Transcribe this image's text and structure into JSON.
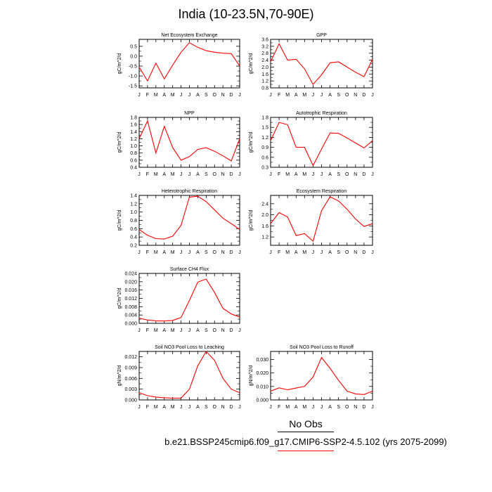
{
  "page": {
    "title": "India (10-23.5N,70-90E)",
    "legend": {
      "obs_label": "No Obs",
      "model_label": "b.e21.BSSP245cmip6.f09_g17.CMIP6-SSP2-4.5.102 (yrs 2075-2099)",
      "model_color": "#ff0000",
      "obs_color": "#000000"
    }
  },
  "chart_data": [
    {
      "type": "line",
      "title": "Net Ecosystem Exchange",
      "ylabel": "gC/m^2/d",
      "categories": [
        "J",
        "F",
        "M",
        "A",
        "M",
        "J",
        "J",
        "A",
        "S",
        "O",
        "N",
        "D",
        "J"
      ],
      "values": [
        -0.55,
        -1.25,
        -0.35,
        -1.15,
        -0.45,
        0.2,
        0.68,
        0.45,
        0.28,
        0.2,
        0.15,
        0.13,
        -0.5
      ],
      "ylim": [
        -1.6,
        0.85
      ],
      "yticks": [
        0.5,
        0.0,
        -0.5,
        -1.0,
        -1.5
      ],
      "ytick_labels": [
        "0.5",
        "0.0",
        "-0.5",
        "-1.0",
        "-1.5"
      ],
      "color": "#ff0000"
    },
    {
      "type": "line",
      "title": "GPP",
      "ylabel": "gC/m^2/d",
      "categories": [
        "J",
        "F",
        "M",
        "A",
        "M",
        "J",
        "J",
        "A",
        "S",
        "O",
        "N",
        "D",
        "J"
      ],
      "values": [
        2.3,
        3.35,
        2.4,
        2.45,
        1.9,
        1.0,
        1.55,
        2.25,
        2.3,
        2.0,
        1.7,
        1.45,
        2.45
      ],
      "ylim": [
        0.8,
        3.6
      ],
      "yticks": [
        3.6,
        3.2,
        2.8,
        2.4,
        2.0,
        1.6,
        1.2,
        0.8
      ],
      "ytick_labels": [
        "3.6",
        "3.2",
        "2.8",
        "2.4",
        "2.0",
        "1.6",
        "1.2",
        "0.8"
      ],
      "color": "#ff0000"
    },
    {
      "type": "line",
      "title": "NPP",
      "ylabel": "gC/m^2/d",
      "categories": [
        "J",
        "F",
        "M",
        "A",
        "M",
        "J",
        "J",
        "A",
        "S",
        "O",
        "N",
        "D",
        "J"
      ],
      "values": [
        1.2,
        1.7,
        0.8,
        1.55,
        0.95,
        0.6,
        0.7,
        0.9,
        0.95,
        0.85,
        0.72,
        0.58,
        1.2
      ],
      "ylim": [
        0.4,
        1.8
      ],
      "yticks": [
        1.8,
        1.6,
        1.4,
        1.2,
        1.0,
        0.8,
        0.6,
        0.4
      ],
      "ytick_labels": [
        "1.8",
        "1.6",
        "1.4",
        "1.2",
        "1.0",
        "0.8",
        "0.6",
        "0.4"
      ],
      "color": "#ff0000"
    },
    {
      "type": "line",
      "title": "Autotrophic Respiration",
      "ylabel": "gC/m^2/d",
      "categories": [
        "J",
        "F",
        "M",
        "A",
        "M",
        "J",
        "J",
        "A",
        "S",
        "O",
        "N",
        "D",
        "J"
      ],
      "values": [
        1.1,
        1.65,
        1.58,
        0.9,
        0.9,
        0.35,
        0.85,
        1.33,
        1.32,
        1.18,
        1.03,
        0.88,
        1.1
      ],
      "ylim": [
        0.3,
        1.8
      ],
      "yticks": [
        1.8,
        1.5,
        1.2,
        0.9,
        0.6,
        0.3
      ],
      "ytick_labels": [
        "1.8",
        "1.5",
        "1.2",
        "0.9",
        "0.6",
        "0.3"
      ],
      "color": "#ff0000"
    },
    {
      "type": "line",
      "title": "Heterotrophic Respiration",
      "ylabel": "gC/m^2/d",
      "categories": [
        "J",
        "F",
        "M",
        "A",
        "M",
        "J",
        "J",
        "A",
        "S",
        "O",
        "N",
        "D",
        "J"
      ],
      "values": [
        0.58,
        0.44,
        0.36,
        0.35,
        0.42,
        0.68,
        1.36,
        1.38,
        1.25,
        1.05,
        0.85,
        0.72,
        0.58
      ],
      "ylim": [
        0.2,
        1.4
      ],
      "yticks": [
        1.4,
        1.2,
        1.0,
        0.8,
        0.6,
        0.4,
        0.2
      ],
      "ytick_labels": [
        "1.4",
        "1.2",
        "1.0",
        "0.8",
        "0.6",
        "0.4",
        "0.2"
      ],
      "color": "#ff0000"
    },
    {
      "type": "line",
      "title": "Ecosystem Respiration",
      "ylabel": "gC/m^2/d",
      "categories": [
        "J",
        "F",
        "M",
        "A",
        "M",
        "J",
        "J",
        "A",
        "S",
        "O",
        "N",
        "D",
        "J"
      ],
      "values": [
        1.68,
        2.08,
        1.92,
        1.25,
        1.32,
        1.05,
        2.15,
        2.65,
        2.5,
        2.2,
        1.85,
        1.58,
        1.68
      ],
      "ylim": [
        0.9,
        2.7
      ],
      "yticks": [
        2.4,
        2.0,
        1.6,
        1.2
      ],
      "ytick_labels": [
        "2.4",
        "2.0",
        "1.6",
        "1.2"
      ],
      "color": "#ff0000"
    },
    {
      "type": "line",
      "title": "Surface CH4 Flux",
      "ylabel": "gC/m^2/d",
      "categories": [
        "J",
        "F",
        "M",
        "A",
        "M",
        "J",
        "J",
        "A",
        "S",
        "O",
        "N",
        "D",
        "J"
      ],
      "values": [
        0.0025,
        0.0016,
        0.0012,
        0.0011,
        0.0014,
        0.0028,
        0.011,
        0.0198,
        0.0213,
        0.0148,
        0.0072,
        0.0045,
        0.003
      ],
      "ylim": [
        0.0,
        0.024
      ],
      "yticks": [
        0.024,
        0.02,
        0.016,
        0.012,
        0.008,
        0.004,
        0.0
      ],
      "ytick_labels": [
        "0.024",
        "0.020",
        "0.016",
        "0.012",
        "0.008",
        "0.004",
        "0.000"
      ],
      "color": "#ff0000"
    },
    {
      "type": "line",
      "title": "Soil NO3 Pool Loss to Leaching",
      "ylabel": "gN/m^2/d",
      "categories": [
        "J",
        "F",
        "M",
        "A",
        "M",
        "J",
        "J",
        "A",
        "S",
        "O",
        "N",
        "D",
        "J"
      ],
      "values": [
        0.002,
        0.0012,
        0.0008,
        0.0006,
        0.0005,
        0.0005,
        0.003,
        0.0095,
        0.0135,
        0.011,
        0.006,
        0.003,
        0.002
      ],
      "ylim": [
        0.0,
        0.0135
      ],
      "yticks": [
        0.012,
        0.009,
        0.006,
        0.003,
        0.0
      ],
      "ytick_labels": [
        "0.012",
        "0.009",
        "0.006",
        "0.003",
        "0.000"
      ],
      "color": "#ff0000"
    },
    {
      "type": "line",
      "title": "Soil NO3 Pool Loss to Runoff",
      "ylabel": "gN/m^2/d",
      "categories": [
        "J",
        "F",
        "M",
        "A",
        "M",
        "J",
        "J",
        "A",
        "S",
        "O",
        "N",
        "D",
        "J"
      ],
      "values": [
        0.0065,
        0.009,
        0.0075,
        0.0088,
        0.01,
        0.017,
        0.0315,
        0.0235,
        0.0145,
        0.0065,
        0.0045,
        0.004,
        0.0065
      ],
      "ylim": [
        0.0,
        0.036
      ],
      "yticks": [
        0.03,
        0.02,
        0.01,
        0.0
      ],
      "ytick_labels": [
        "0.030",
        "0.020",
        "0.010",
        "0.000"
      ],
      "color": "#ff0000"
    }
  ]
}
